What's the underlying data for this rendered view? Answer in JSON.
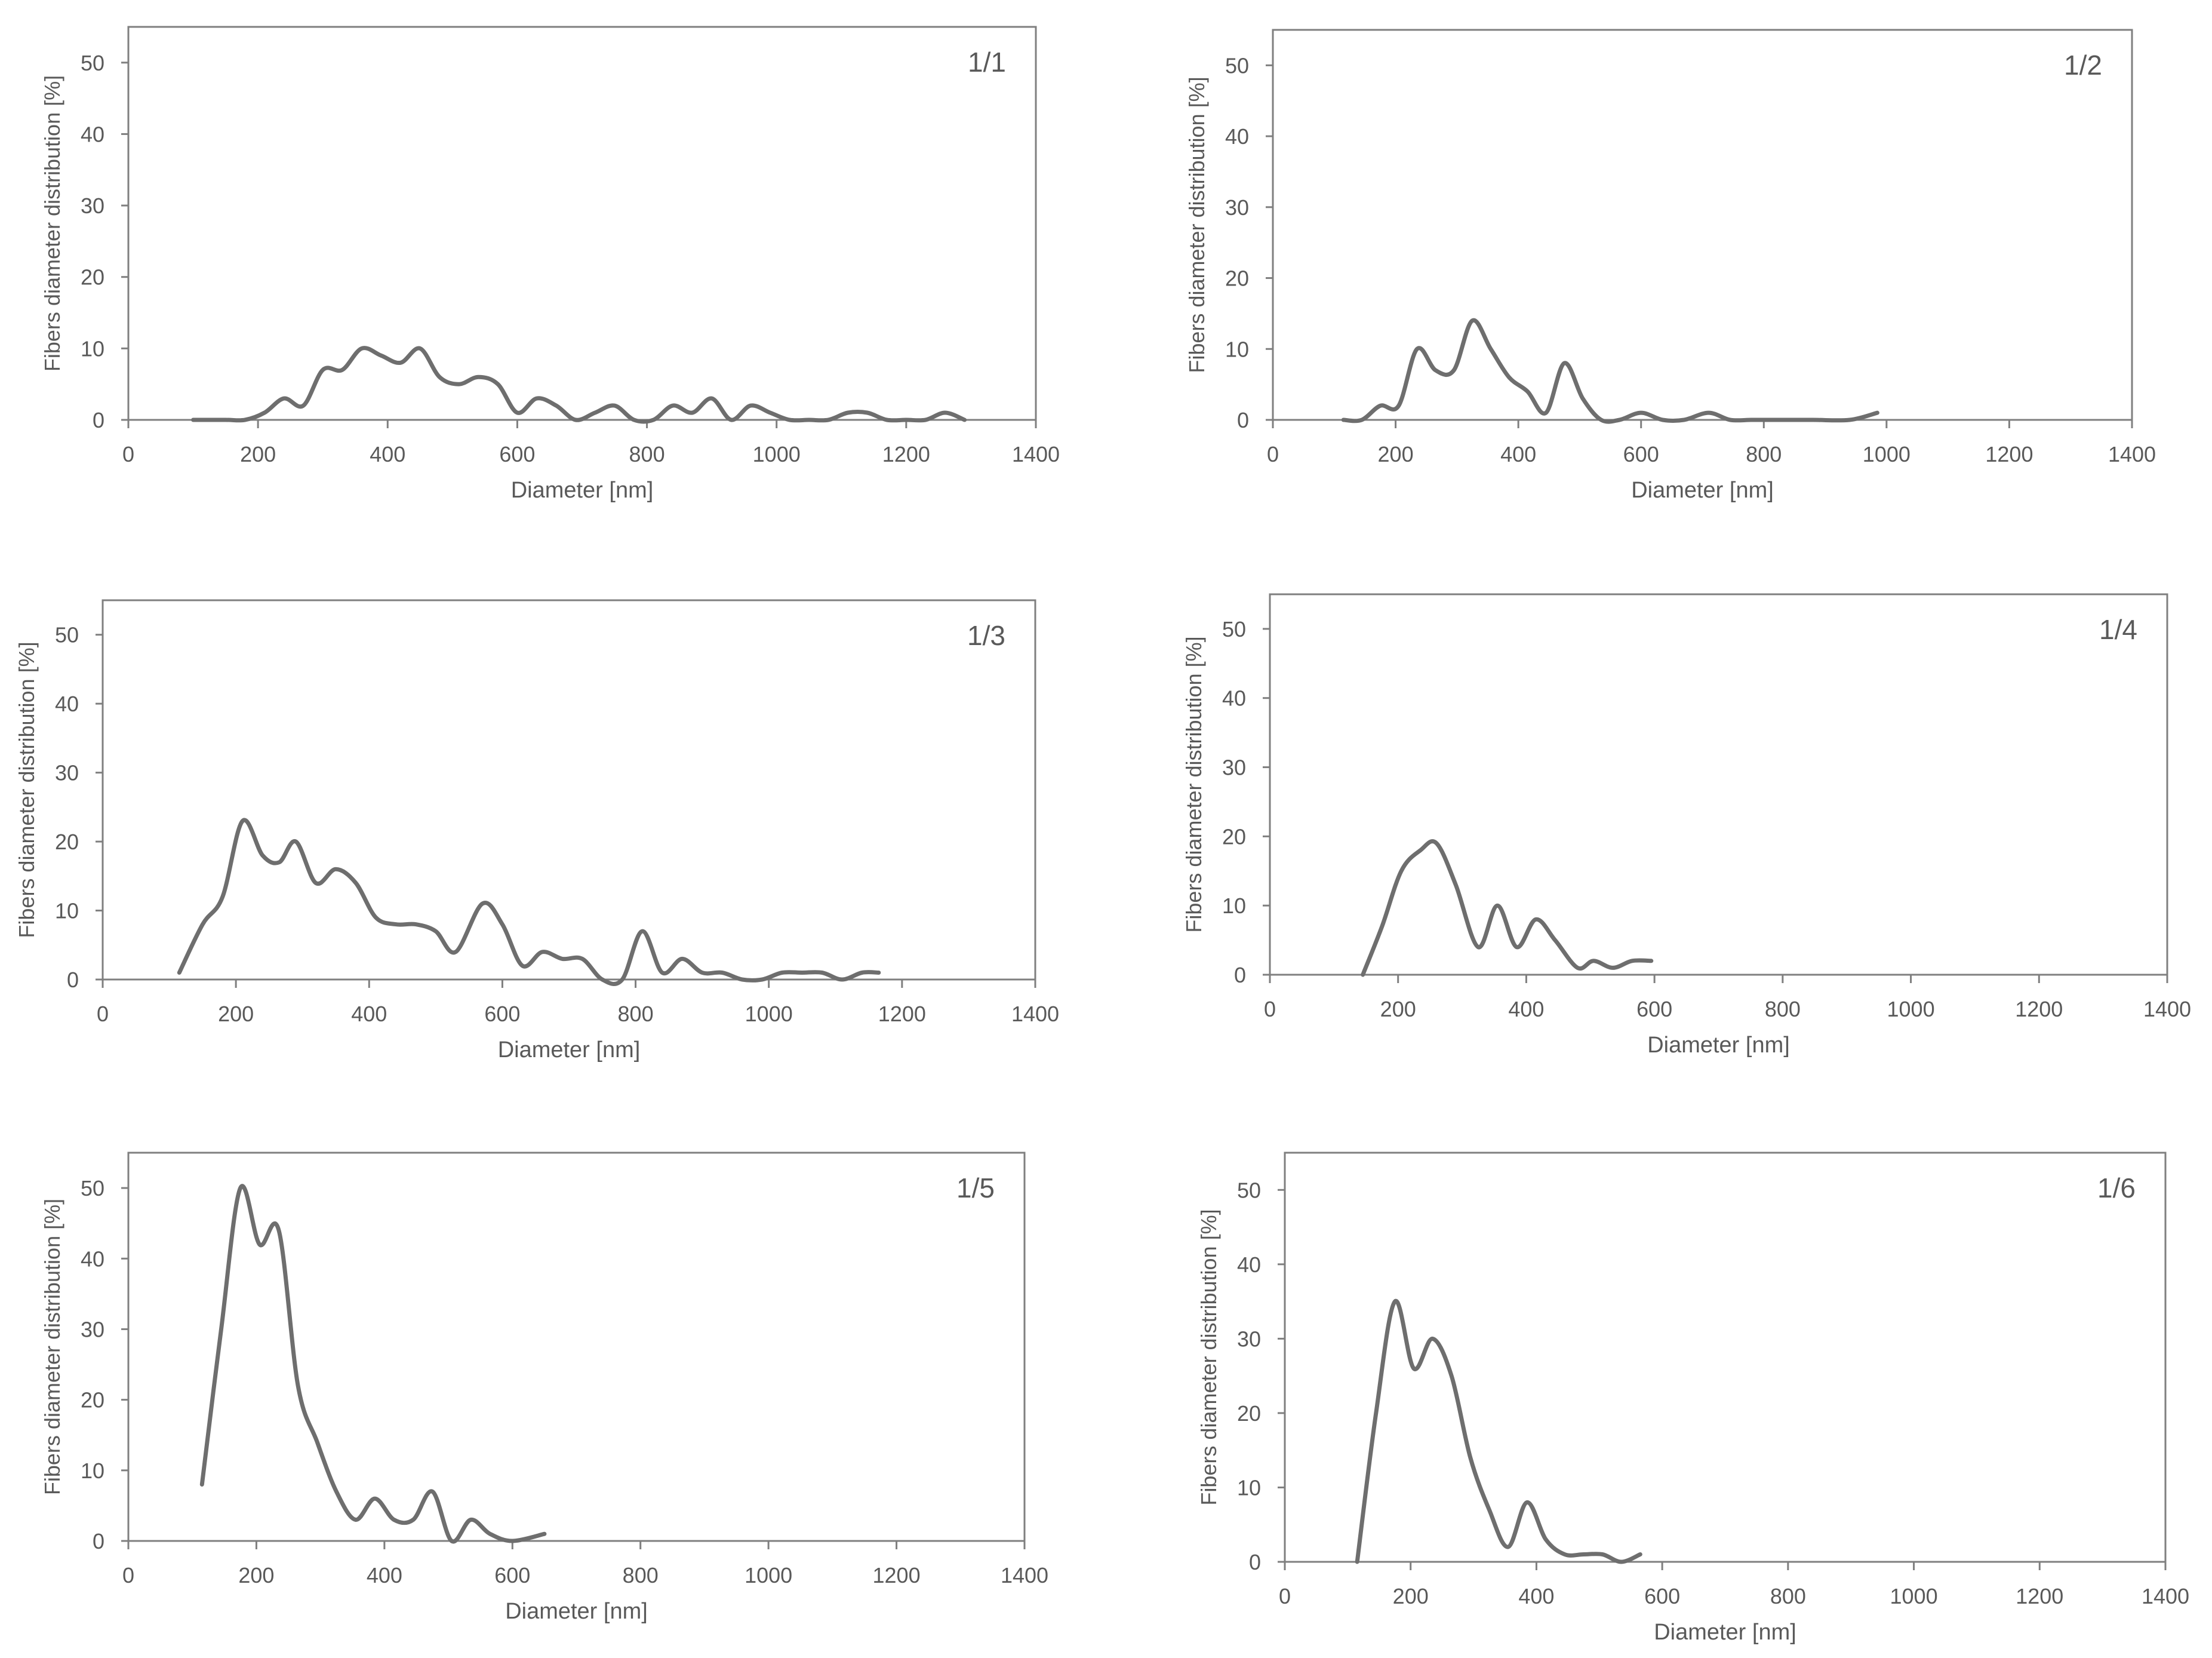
{
  "figure": {
    "line_color": "#6e6e6e",
    "axis_color": "#7f7f7f",
    "text_color": "#595959"
  },
  "chart_data": [
    {
      "type": "line",
      "title": "1/1",
      "xlabel": "Diameter [nm]",
      "ylabel": "Fibers diameter distribution [%]",
      "xlim": [
        0,
        1400
      ],
      "ylim": [
        0,
        55
      ],
      "xticks": [
        0,
        200,
        400,
        600,
        800,
        1000,
        1200,
        1400
      ],
      "yticks": [
        0,
        10,
        20,
        30,
        40,
        50
      ],
      "grid": false,
      "series": [
        {
          "name": "1/1",
          "x": [
            100,
            150,
            180,
            210,
            240,
            270,
            300,
            330,
            360,
            390,
            420,
            450,
            480,
            510,
            540,
            570,
            600,
            630,
            660,
            690,
            720,
            750,
            780,
            810,
            840,
            870,
            900,
            930,
            960,
            990,
            1020,
            1050,
            1080,
            1110,
            1140,
            1170,
            1200,
            1230,
            1260,
            1290
          ],
          "y": [
            0,
            0,
            0,
            1,
            3,
            2,
            7,
            7,
            10,
            9,
            8,
            10,
            6,
            5,
            6,
            5,
            1,
            3,
            2,
            0,
            1,
            2,
            0,
            0,
            2,
            1,
            3,
            0,
            2,
            1,
            0,
            0,
            0,
            1,
            1,
            0,
            0,
            0,
            1,
            0
          ]
        }
      ]
    },
    {
      "type": "line",
      "title": "1/2",
      "xlabel": "Diameter [nm]",
      "ylabel": "Fibers diameter distribution [%]",
      "xlim": [
        0,
        1400
      ],
      "ylim": [
        0,
        55
      ],
      "xticks": [
        0,
        200,
        400,
        600,
        800,
        1000,
        1200,
        1400
      ],
      "yticks": [
        0,
        10,
        20,
        30,
        40,
        50
      ],
      "grid": false,
      "series": [
        {
          "name": "1/2",
          "x": [
            115,
            145,
            175,
            205,
            235,
            265,
            295,
            325,
            355,
            385,
            415,
            445,
            475,
            505,
            535,
            565,
            600,
            635,
            670,
            710,
            745,
            780,
            820,
            880,
            940,
            985
          ],
          "y": [
            0,
            0,
            2,
            2,
            10,
            7,
            7,
            14,
            10,
            6,
            4,
            1,
            8,
            3,
            0,
            0,
            1,
            0,
            0,
            1,
            0,
            0,
            0,
            0,
            0,
            1
          ]
        }
      ]
    },
    {
      "type": "line",
      "title": "1/3",
      "xlabel": "Diameter [nm]",
      "ylabel": "Fibers diameter distribution [%]",
      "xlim": [
        0,
        1400
      ],
      "ylim": [
        0,
        55
      ],
      "xticks": [
        0,
        200,
        400,
        600,
        800,
        1000,
        1200,
        1400
      ],
      "yticks": [
        0,
        10,
        20,
        30,
        40,
        50
      ],
      "grid": false,
      "series": [
        {
          "name": "1/3",
          "x": [
            115,
            150,
            180,
            210,
            240,
            265,
            290,
            320,
            350,
            380,
            410,
            440,
            470,
            500,
            530,
            570,
            600,
            630,
            660,
            690,
            720,
            750,
            780,
            810,
            840,
            870,
            900,
            930,
            960,
            990,
            1020,
            1050,
            1080,
            1110,
            1140,
            1165
          ],
          "y": [
            1,
            8,
            12,
            23,
            18,
            17,
            20,
            14,
            16,
            14,
            9,
            8,
            8,
            7,
            4,
            11,
            8,
            2,
            4,
            3,
            3,
            0,
            0,
            7,
            1,
            3,
            1,
            1,
            0,
            0,
            1,
            1,
            1,
            0,
            1,
            1
          ]
        }
      ]
    },
    {
      "type": "line",
      "title": "1/4",
      "xlabel": "Diameter [nm]",
      "ylabel": "Fibers diameter distribution [%]",
      "xlim": [
        0,
        1400
      ],
      "ylim": [
        0,
        55
      ],
      "xticks": [
        0,
        200,
        400,
        600,
        800,
        1000,
        1200,
        1400
      ],
      "yticks": [
        0,
        10,
        20,
        30,
        40,
        50
      ],
      "grid": false,
      "series": [
        {
          "name": "1/4",
          "x": [
            145,
            175,
            205,
            235,
            260,
            290,
            325,
            355,
            385,
            415,
            445,
            480,
            505,
            535,
            565,
            595
          ],
          "y": [
            0,
            7,
            15,
            18,
            19,
            13,
            4,
            10,
            4,
            8,
            5,
            1,
            2,
            1,
            2,
            2
          ]
        }
      ]
    },
    {
      "type": "line",
      "title": "1/5",
      "xlabel": "Diameter [nm]",
      "ylabel": "Fibers diameter distribution [%]",
      "xlim": [
        0,
        1400
      ],
      "ylim": [
        0,
        55
      ],
      "xticks": [
        0,
        200,
        400,
        600,
        800,
        1000,
        1200,
        1400
      ],
      "yticks": [
        0,
        10,
        20,
        30,
        40,
        50
      ],
      "grid": false,
      "series": [
        {
          "name": "1/5",
          "x": [
            115,
            145,
            175,
            205,
            235,
            265,
            295,
            325,
            355,
            385,
            415,
            445,
            475,
            505,
            535,
            565,
            600,
            650
          ],
          "y": [
            8,
            30,
            50,
            42,
            44,
            22,
            14,
            7,
            3,
            6,
            3,
            3,
            7,
            0,
            3,
            1,
            0,
            1
          ]
        }
      ]
    },
    {
      "type": "line",
      "title": "1/6",
      "xlabel": "Diameter [nm]",
      "ylabel": "Fibers diameter distribution [%]",
      "xlim": [
        0,
        1400
      ],
      "ylim": [
        0,
        55
      ],
      "xticks": [
        0,
        200,
        400,
        600,
        800,
        1000,
        1200,
        1400
      ],
      "yticks": [
        0,
        10,
        20,
        30,
        40,
        50
      ],
      "grid": false,
      "series": [
        {
          "name": "1/6",
          "x": [
            115,
            145,
            175,
            205,
            235,
            265,
            295,
            325,
            355,
            385,
            415,
            445,
            475,
            505,
            535,
            565
          ],
          "y": [
            0,
            20,
            35,
            26,
            30,
            25,
            14,
            7,
            2,
            8,
            3,
            1,
            1,
            1,
            0,
            1
          ]
        }
      ]
    }
  ]
}
